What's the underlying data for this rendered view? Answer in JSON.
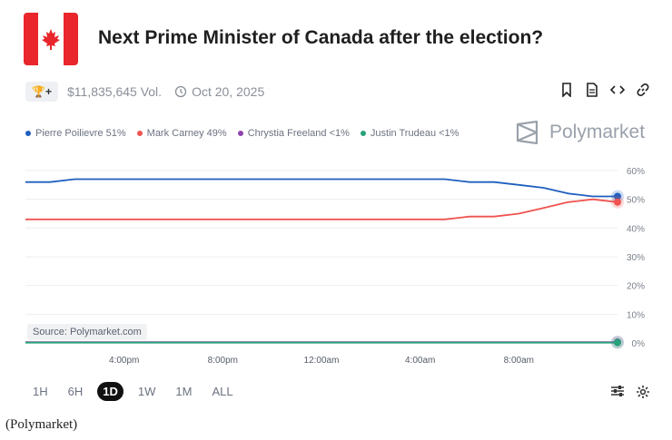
{
  "header": {
    "title": "Next Prime Minister of Canada after the election?",
    "trophy_label": "+",
    "volume": "$11,835,645 Vol.",
    "date": "Oct 20, 2025"
  },
  "brand": "Polymarket",
  "source": "Source: Polymarket.com",
  "ranges": [
    "1H",
    "6H",
    "1D",
    "1W",
    "1M",
    "ALL"
  ],
  "active_range": "1D",
  "caption": "(Polymarket)",
  "colors": {
    "blue": "#1f5fbf",
    "red": "#ef5350",
    "purple": "#8e44ad",
    "green": "#27a37a",
    "flag_red": "#e8262b"
  },
  "chart_data": {
    "type": "line",
    "title": "",
    "xlabel": "",
    "ylabel": "",
    "x_ticks": [
      "4:00pm",
      "8:00pm",
      "12:00am",
      "4:00am",
      "8:00am"
    ],
    "x_tick_index": [
      4,
      8,
      12,
      16,
      20
    ],
    "y_ticks": [
      0,
      10,
      20,
      30,
      40,
      50,
      60
    ],
    "y_tick_labels": [
      "0%",
      "10%",
      "20%",
      "30%",
      "40%",
      "50%",
      "60%"
    ],
    "ylim": [
      0,
      60
    ],
    "legend_position": "top-left",
    "grid": true,
    "series": [
      {
        "name": "Pierre Poilievre",
        "label": "Pierre Poilievre 51%",
        "color": "#1f5fbf",
        "values": [
          56,
          56,
          57,
          57,
          57,
          57,
          57,
          57,
          57,
          57,
          57,
          57,
          57,
          57,
          57,
          57,
          57,
          57,
          56,
          56,
          55,
          54,
          52,
          51,
          51
        ]
      },
      {
        "name": "Mark Carney",
        "label": "Mark Carney 49%",
        "color": "#ef5350",
        "values": [
          43,
          43,
          43,
          43,
          43,
          43,
          43,
          43,
          43,
          43,
          43,
          43,
          43,
          43,
          43,
          43,
          43,
          43,
          44,
          44,
          45,
          47,
          49,
          50,
          49
        ]
      },
      {
        "name": "Chrystia Freeland",
        "label": "Chrystia Freeland <1%",
        "color": "#8e44ad",
        "values": [
          0.3,
          0.3,
          0.3,
          0.3,
          0.3,
          0.3,
          0.3,
          0.3,
          0.3,
          0.3,
          0.3,
          0.3,
          0.3,
          0.3,
          0.3,
          0.3,
          0.3,
          0.3,
          0.3,
          0.3,
          0.3,
          0.3,
          0.3,
          0.3,
          0.3
        ]
      },
      {
        "name": "Justin Trudeau",
        "label": "Justin Trudeau <1%",
        "color": "#27a37a",
        "values": [
          0.1,
          0.1,
          0.1,
          0.1,
          0.1,
          0.1,
          0.1,
          0.1,
          0.1,
          0.1,
          0.1,
          0.1,
          0.1,
          0.1,
          0.1,
          0.1,
          0.1,
          0.1,
          0.1,
          0.1,
          0.1,
          0.1,
          0.1,
          0.1,
          0.1
        ]
      }
    ]
  }
}
